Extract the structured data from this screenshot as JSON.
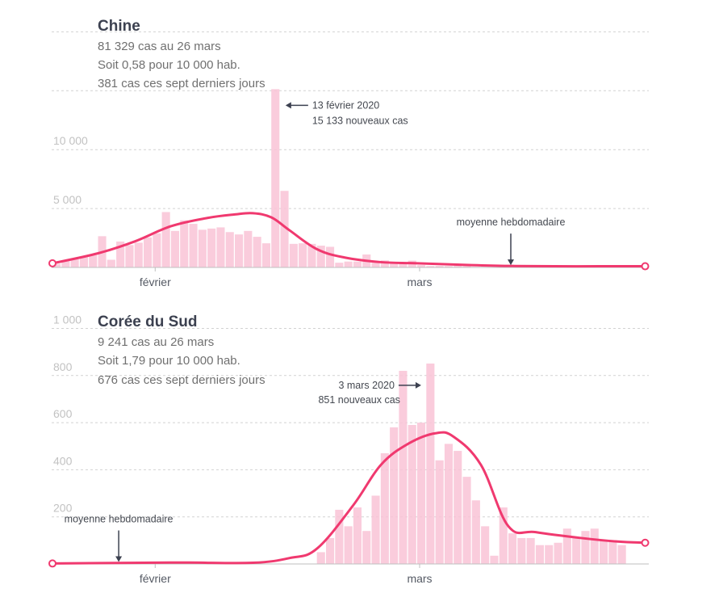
{
  "chart_data": [
    {
      "type": "bar",
      "title": "Chine",
      "subtitle_lines": [
        "81 329 cas au 26 mars",
        "Soit 0,58 pour 10 000 hab.",
        "381 cas ces sept derniers jours"
      ],
      "y_ticks": [
        {
          "value": 5000,
          "label": "5 000"
        },
        {
          "value": 10000,
          "label": "10 000"
        }
      ],
      "gridlines": [
        0,
        5000,
        10000,
        15000,
        20000
      ],
      "ylim": [
        0,
        20000
      ],
      "x_ticks": [
        {
          "day": 11,
          "label": "février"
        },
        {
          "day": 40,
          "label": "mars"
        }
      ],
      "xlim": [
        0,
        65
      ],
      "bars": [
        {
          "day": 0,
          "value": 300
        },
        {
          "day": 1,
          "value": 550
        },
        {
          "day": 2,
          "value": 700
        },
        {
          "day": 3,
          "value": 900
        },
        {
          "day": 4,
          "value": 1050
        },
        {
          "day": 5,
          "value": 2650
        },
        {
          "day": 6,
          "value": 650
        },
        {
          "day": 7,
          "value": 2200
        },
        {
          "day": 8,
          "value": 1900
        },
        {
          "day": 9,
          "value": 2100
        },
        {
          "day": 10,
          "value": 2550
        },
        {
          "day": 11,
          "value": 2900
        },
        {
          "day": 12,
          "value": 4700
        },
        {
          "day": 13,
          "value": 3100
        },
        {
          "day": 14,
          "value": 4000
        },
        {
          "day": 15,
          "value": 3700
        },
        {
          "day": 16,
          "value": 3200
        },
        {
          "day": 17,
          "value": 3300
        },
        {
          "day": 18,
          "value": 3400
        },
        {
          "day": 19,
          "value": 3000
        },
        {
          "day": 20,
          "value": 2800
        },
        {
          "day": 21,
          "value": 3100
        },
        {
          "day": 22,
          "value": 2600
        },
        {
          "day": 23,
          "value": 2050
        },
        {
          "day": 24,
          "value": 15133
        },
        {
          "day": 25,
          "value": 6500
        },
        {
          "day": 26,
          "value": 2000
        },
        {
          "day": 27,
          "value": 2050
        },
        {
          "day": 28,
          "value": 2000
        },
        {
          "day": 29,
          "value": 1850
        },
        {
          "day": 30,
          "value": 1750
        },
        {
          "day": 31,
          "value": 400
        },
        {
          "day": 32,
          "value": 500
        },
        {
          "day": 33,
          "value": 500
        },
        {
          "day": 34,
          "value": 1100
        },
        {
          "day": 35,
          "value": 400
        },
        {
          "day": 36,
          "value": 600
        },
        {
          "day": 37,
          "value": 430
        },
        {
          "day": 38,
          "value": 330
        },
        {
          "day": 39,
          "value": 580
        },
        {
          "day": 40,
          "value": 200
        },
        {
          "day": 41,
          "value": 120
        },
        {
          "day": 42,
          "value": 130
        },
        {
          "day": 43,
          "value": 120
        },
        {
          "day": 44,
          "value": 140
        },
        {
          "day": 45,
          "value": 100
        },
        {
          "day": 46,
          "value": 45
        },
        {
          "day": 47,
          "value": 40
        },
        {
          "day": 48,
          "value": 20
        },
        {
          "day": 49,
          "value": 25
        },
        {
          "day": 50,
          "value": 15
        },
        {
          "day": 51,
          "value": 10
        },
        {
          "day": 52,
          "value": 20
        },
        {
          "day": 53,
          "value": 15
        },
        {
          "day": 54,
          "value": 20
        },
        {
          "day": 55,
          "value": 40
        },
        {
          "day": 56,
          "value": 20
        },
        {
          "day": 57,
          "value": 40
        },
        {
          "day": 58,
          "value": 40
        },
        {
          "day": 59,
          "value": 40
        },
        {
          "day": 60,
          "value": 60
        },
        {
          "day": 61,
          "value": 80
        },
        {
          "day": 62,
          "value": 70
        },
        {
          "day": 63,
          "value": 100
        },
        {
          "day": 64,
          "value": 60
        }
      ],
      "weekly_average": [
        {
          "day": 0,
          "value": 350
        },
        {
          "day": 5,
          "value": 1200
        },
        {
          "day": 9,
          "value": 2200
        },
        {
          "day": 13,
          "value": 3500
        },
        {
          "day": 17,
          "value": 4200
        },
        {
          "day": 20,
          "value": 4500
        },
        {
          "day": 22,
          "value": 4600
        },
        {
          "day": 24,
          "value": 4250
        },
        {
          "day": 26,
          "value": 3150
        },
        {
          "day": 29,
          "value": 1550
        },
        {
          "day": 32,
          "value": 850
        },
        {
          "day": 36,
          "value": 450
        },
        {
          "day": 40,
          "value": 350
        },
        {
          "day": 46,
          "value": 200
        },
        {
          "day": 50,
          "value": 130
        },
        {
          "day": 55,
          "value": 100
        },
        {
          "day": 60,
          "value": 100
        },
        {
          "day": 65,
          "value": 100
        }
      ],
      "peak_annotation": {
        "day": 24,
        "value": 15133,
        "line1": "13 février 2020",
        "line2": "15 133 nouveaux cas",
        "side": "right"
      },
      "average_annotation": {
        "label": "moyenne hebdomadaire",
        "day": 50,
        "value": 130
      }
    },
    {
      "type": "bar",
      "title": "Corée du Sud",
      "subtitle_lines": [
        "9 241 cas au 26 mars",
        "Soit 1,79 pour 10 000 hab.",
        "676 cas ces sept derniers jours"
      ],
      "y_ticks": [
        {
          "value": 200,
          "label": "200"
        },
        {
          "value": 400,
          "label": "400"
        },
        {
          "value": 600,
          "label": "600"
        },
        {
          "value": 800,
          "label": "800"
        },
        {
          "value": 1000,
          "label": "1 000"
        }
      ],
      "gridlines": [
        0,
        200,
        400,
        600,
        800,
        1000
      ],
      "ylim": [
        0,
        1000
      ],
      "x_ticks": [
        {
          "day": 11,
          "label": "février"
        },
        {
          "day": 40,
          "value_label": "",
          "label": "mars"
        }
      ],
      "xlim": [
        0,
        65
      ],
      "bars": [
        {
          "day": 29,
          "value": 50
        },
        {
          "day": 30,
          "value": 110
        },
        {
          "day": 31,
          "value": 230
        },
        {
          "day": 32,
          "value": 160
        },
        {
          "day": 33,
          "value": 240
        },
        {
          "day": 34,
          "value": 140
        },
        {
          "day": 35,
          "value": 290
        },
        {
          "day": 36,
          "value": 470
        },
        {
          "day": 37,
          "value": 580
        },
        {
          "day": 38,
          "value": 820
        },
        {
          "day": 39,
          "value": 590
        },
        {
          "day": 40,
          "value": 600
        },
        {
          "day": 41,
          "value": 851
        },
        {
          "day": 42,
          "value": 440
        },
        {
          "day": 43,
          "value": 510
        },
        {
          "day": 44,
          "value": 480
        },
        {
          "day": 45,
          "value": 370
        },
        {
          "day": 46,
          "value": 270
        },
        {
          "day": 47,
          "value": 160
        },
        {
          "day": 48,
          "value": 35
        },
        {
          "day": 49,
          "value": 240
        },
        {
          "day": 50,
          "value": 130
        },
        {
          "day": 51,
          "value": 110
        },
        {
          "day": 52,
          "value": 110
        },
        {
          "day": 53,
          "value": 80
        },
        {
          "day": 54,
          "value": 80
        },
        {
          "day": 55,
          "value": 90
        },
        {
          "day": 56,
          "value": 150
        },
        {
          "day": 57,
          "value": 110
        },
        {
          "day": 58,
          "value": 140
        },
        {
          "day": 59,
          "value": 150
        },
        {
          "day": 60,
          "value": 100
        },
        {
          "day": 61,
          "value": 100
        },
        {
          "day": 62,
          "value": 80
        }
      ],
      "weekly_average": [
        {
          "day": 0,
          "value": 2
        },
        {
          "day": 10,
          "value": 5
        },
        {
          "day": 15,
          "value": 6
        },
        {
          "day": 22,
          "value": 5
        },
        {
          "day": 26,
          "value": 25
        },
        {
          "day": 29,
          "value": 65
        },
        {
          "day": 33,
          "value": 250
        },
        {
          "day": 36,
          "value": 420
        },
        {
          "day": 39,
          "value": 510
        },
        {
          "day": 42,
          "value": 555
        },
        {
          "day": 44,
          "value": 540
        },
        {
          "day": 47,
          "value": 420
        },
        {
          "day": 50,
          "value": 160
        },
        {
          "day": 53,
          "value": 135
        },
        {
          "day": 58,
          "value": 110
        },
        {
          "day": 62,
          "value": 95
        },
        {
          "day": 65,
          "value": 90
        }
      ],
      "peak_annotation": {
        "day": 41,
        "value": 851,
        "line1": "3 mars 2020",
        "line2": "851 nouveaux cas",
        "side": "left"
      },
      "average_annotation": {
        "label": "moyenne hebdomadaire",
        "day": 7,
        "value": 5
      }
    }
  ]
}
